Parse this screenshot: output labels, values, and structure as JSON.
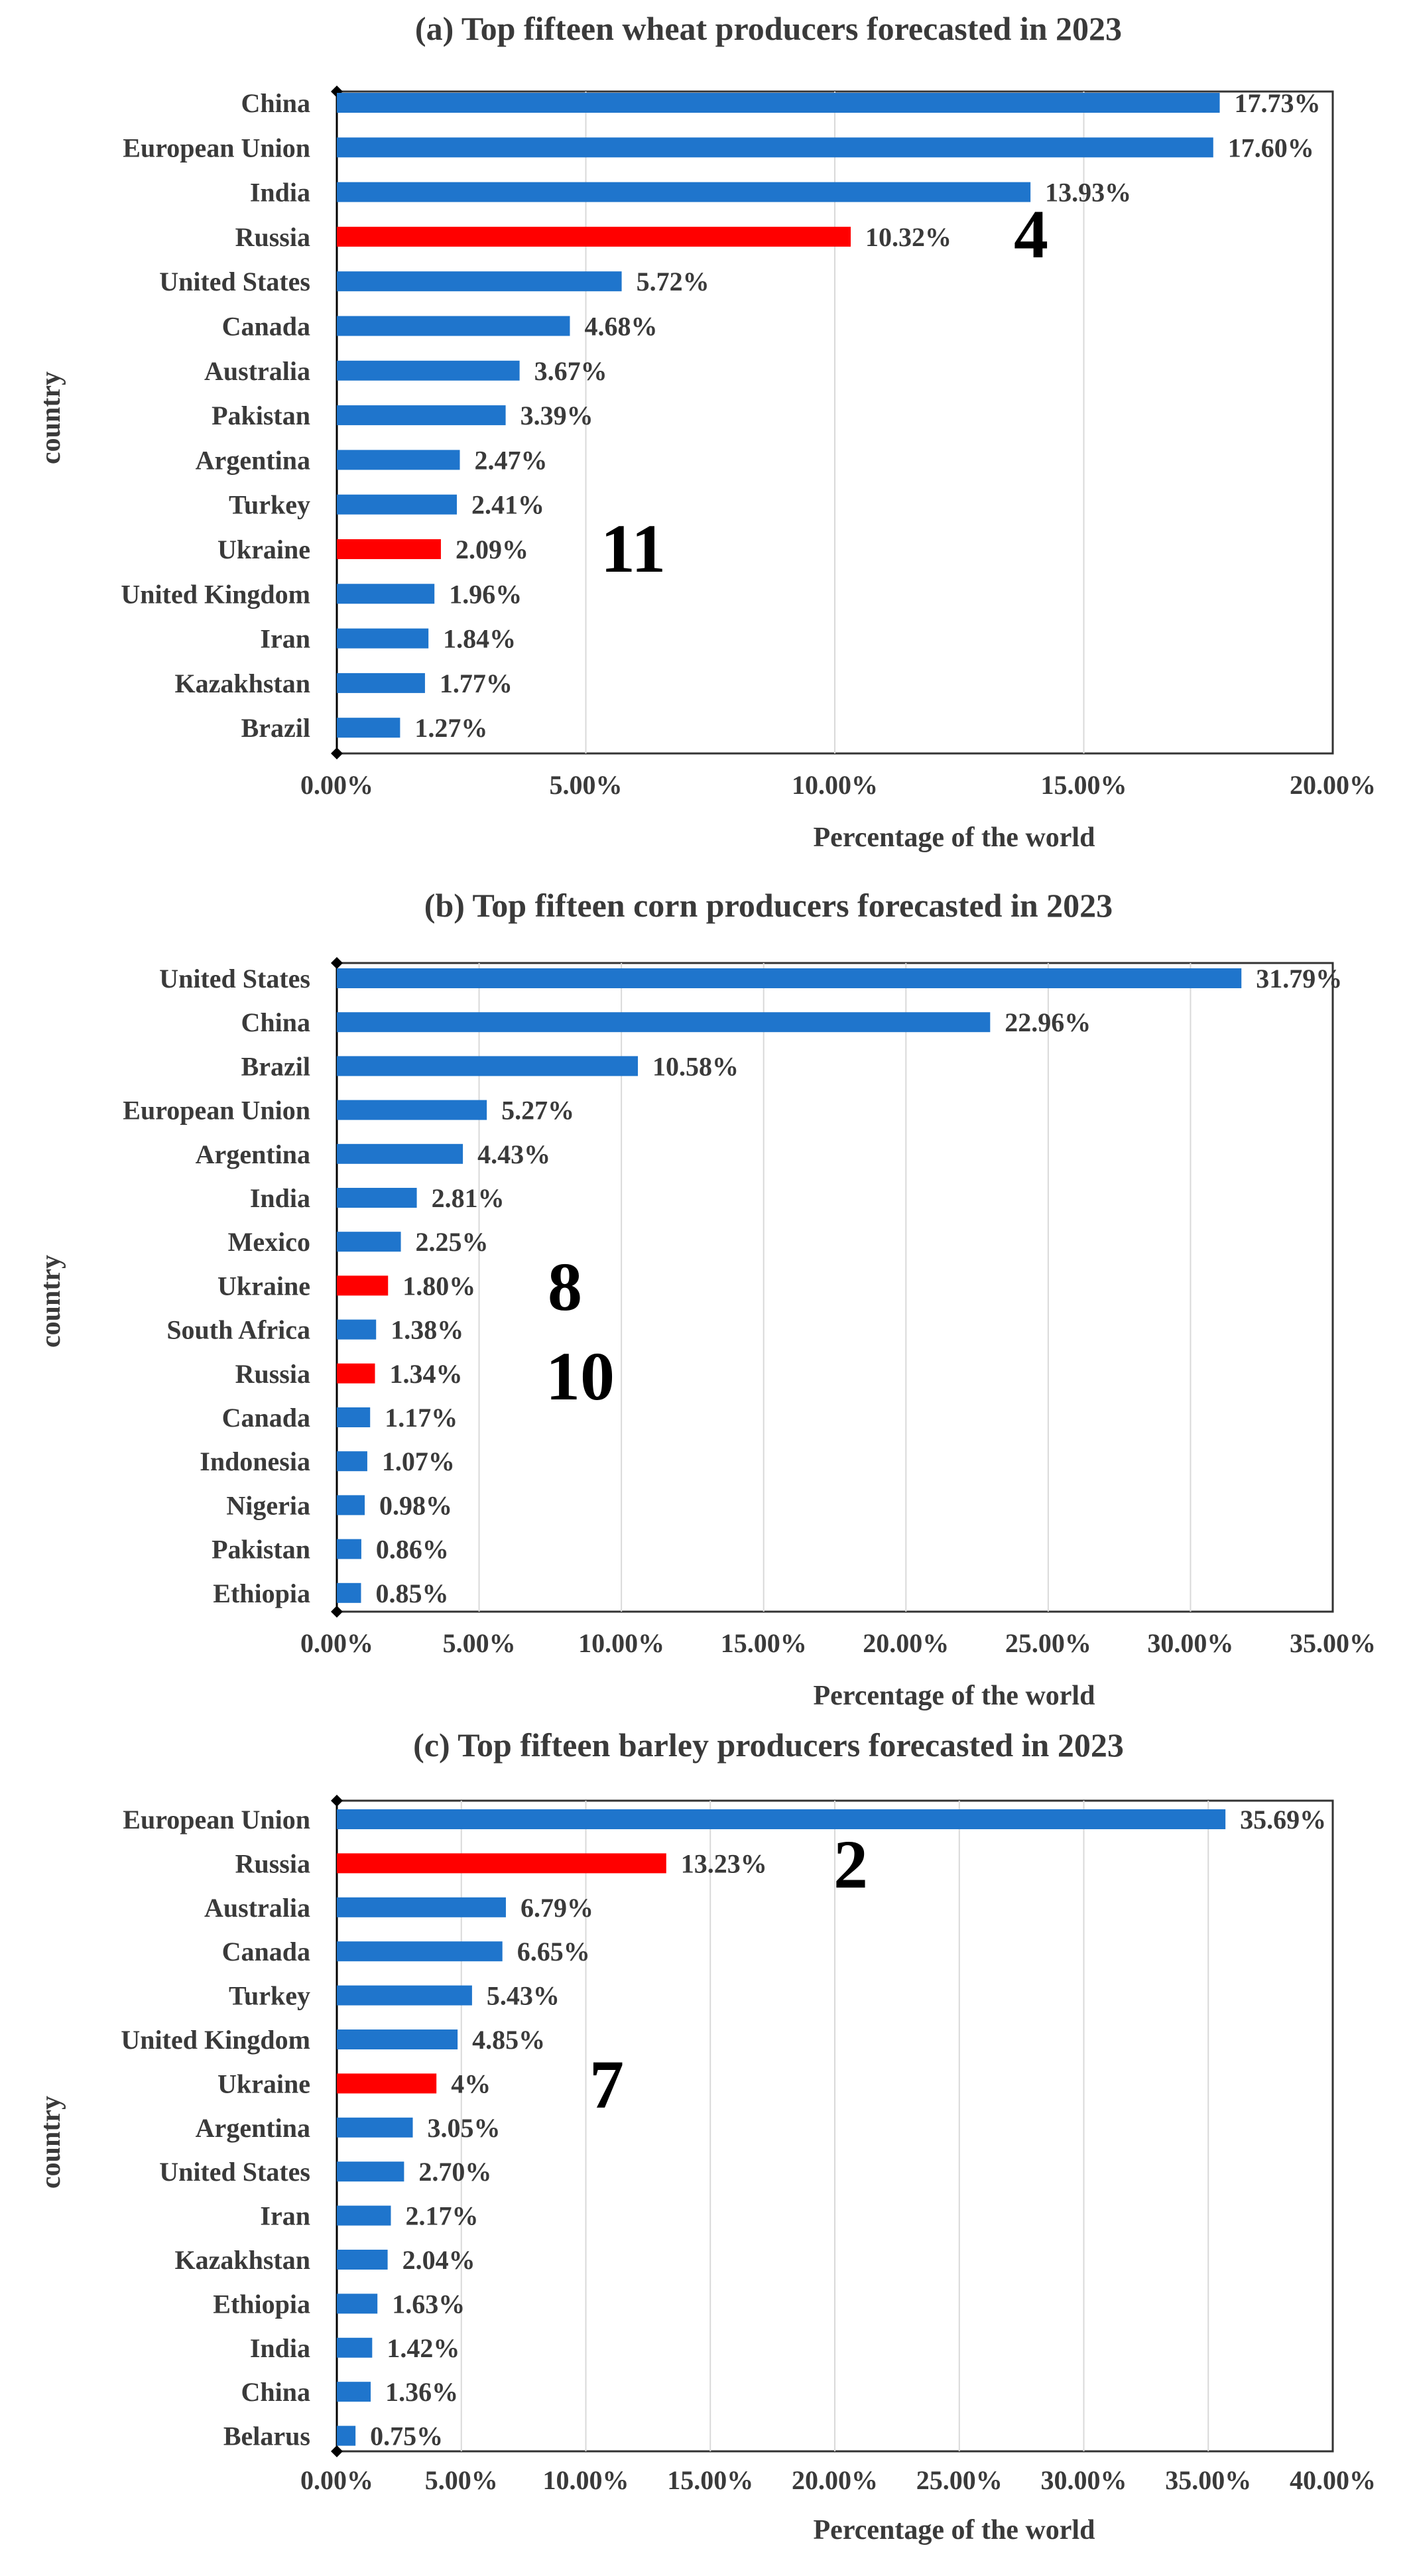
{
  "chart_data": [
    {
      "type": "bar",
      "orientation": "horizontal",
      "title": "(a) Top fifteen wheat producers forecasted in 2023",
      "xlabel": "Percentage of the world",
      "ylabel": "country",
      "xlim": [
        0,
        20
      ],
      "ticks": [
        "0.00%",
        "5.00%",
        "10.00%",
        "15.00%",
        "20.00%"
      ],
      "categories": [
        "China",
        "European Union",
        "India",
        "Russia",
        "United States",
        "Canada",
        "Australia",
        "Pakistan",
        "Argentina",
        "Turkey",
        "Ukraine",
        "United Kingdom",
        "Iran",
        "Kazakhstan",
        "Brazil"
      ],
      "values": [
        17.73,
        17.6,
        13.93,
        10.32,
        5.72,
        4.68,
        3.67,
        3.39,
        2.47,
        2.41,
        2.09,
        1.96,
        1.84,
        1.77,
        1.27
      ],
      "value_labels": [
        "17.73%",
        "17.60%",
        "13.93%",
        "10.32%",
        "5.72%",
        "4.68%",
        "3.67%",
        "3.39%",
        "2.47%",
        "2.41%",
        "2.09%",
        "1.96%",
        "1.84%",
        "1.77%",
        "1.27%"
      ],
      "highlighted": [
        "Russia",
        "Ukraine"
      ],
      "annotations": [
        {
          "text": "4",
          "category": "Russia"
        },
        {
          "text": "11",
          "category": "Ukraine"
        }
      ]
    },
    {
      "type": "bar",
      "orientation": "horizontal",
      "title": "(b) Top fifteen corn producers forecasted in 2023",
      "xlabel": "Percentage of the world",
      "ylabel": "country",
      "xlim": [
        0,
        35
      ],
      "ticks": [
        "0.00%",
        "5.00%",
        "10.00%",
        "15.00%",
        "20.00%",
        "25.00%",
        "30.00%",
        "35.00%"
      ],
      "categories": [
        "United States",
        "China",
        "Brazil",
        "European Union",
        "Argentina",
        "India",
        "Mexico",
        "Ukraine",
        "South Africa",
        "Russia",
        "Canada",
        "Indonesia",
        "Nigeria",
        "Pakistan",
        "Ethiopia"
      ],
      "values": [
        31.79,
        22.96,
        10.58,
        5.27,
        4.43,
        2.81,
        2.25,
        1.8,
        1.38,
        1.34,
        1.17,
        1.07,
        0.98,
        0.86,
        0.85
      ],
      "value_labels": [
        "31.79%",
        "22.96%",
        "10.58%",
        "5.27%",
        "4.43%",
        "2.81%",
        "2.25%",
        "1.80%",
        "1.38%",
        "1.34%",
        "1.17%",
        "1.07%",
        "0.98%",
        "0.86%",
        "0.85%"
      ],
      "highlighted": [
        "Ukraine",
        "Russia"
      ],
      "annotations": [
        {
          "text": "8",
          "category": "Ukraine"
        },
        {
          "text": "10",
          "category": "Russia"
        }
      ]
    },
    {
      "type": "bar",
      "orientation": "horizontal",
      "title": "(c) Top fifteen barley producers forecasted in 2023",
      "xlabel": "Percentage of the world",
      "ylabel": "country",
      "xlim": [
        0,
        40
      ],
      "ticks": [
        "0.00%",
        "5.00%",
        "10.00%",
        "15.00%",
        "20.00%",
        "25.00%",
        "30.00%",
        "35.00%",
        "40.00%"
      ],
      "categories": [
        "European Union",
        "Russia",
        "Australia",
        "Canada",
        "Turkey",
        "United Kingdom",
        "Ukraine",
        "Argentina",
        "United States",
        "Iran",
        "Kazakhstan",
        "Ethiopia",
        "India",
        "China",
        "Belarus"
      ],
      "values": [
        35.69,
        13.23,
        6.79,
        6.65,
        5.43,
        4.85,
        4.0,
        3.05,
        2.7,
        2.17,
        2.04,
        1.63,
        1.42,
        1.36,
        0.75
      ],
      "value_labels": [
        "35.69%",
        "13.23%",
        "6.79%",
        "6.65%",
        "5.43%",
        "4.85%",
        "4%",
        "3.05%",
        "2.70%",
        "2.17%",
        "2.04%",
        "1.63%",
        "1.42%",
        "1.36%",
        "0.75%"
      ],
      "highlighted": [
        "Russia",
        "Ukraine"
      ],
      "annotations": [
        {
          "text": "2",
          "category": "Russia"
        },
        {
          "text": "7",
          "category": "Ukraine"
        }
      ]
    }
  ],
  "colors": {
    "bar": "#1f75cc",
    "highlight": "#ff0000",
    "grid": "#d9d9d9",
    "axis": "#000000",
    "frame": "#333333"
  }
}
